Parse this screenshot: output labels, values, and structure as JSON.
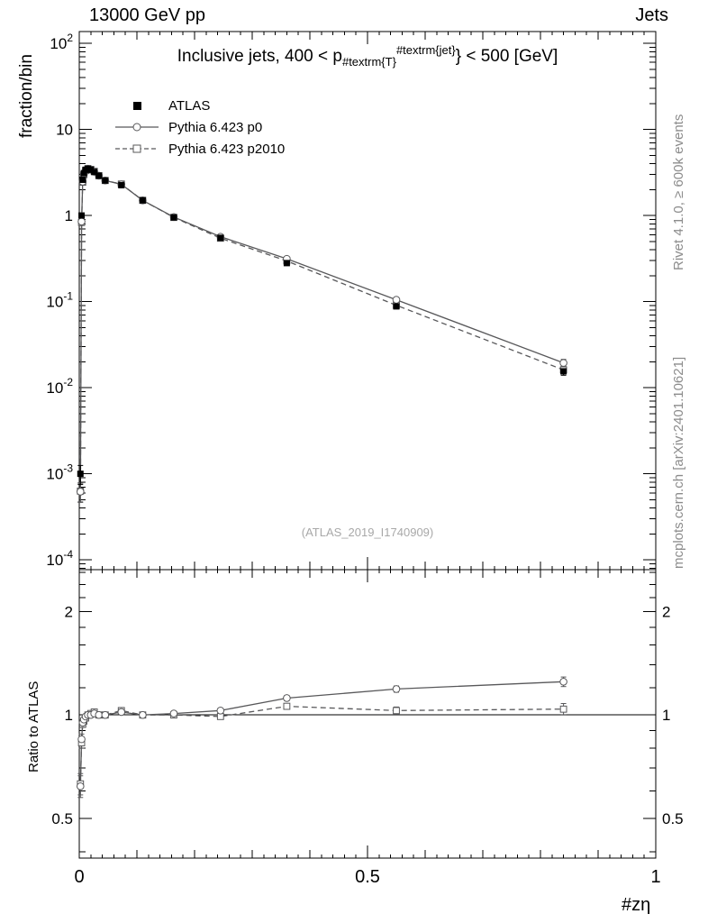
{
  "header": {
    "left": "13000 GeV pp",
    "right": "Jets"
  },
  "plot_title": {
    "prefix": "Inclusive jets, 400 < p",
    "sub": "#textrm{T}",
    "sup": "#textrm{jet}",
    "suffix": "} < 500 [GeV]"
  },
  "captions": {
    "rivet": "Rivet 4.1.0, ≥ 600k events",
    "mcplots": "mcplots.cern.ch [arXiv:2401.10621]",
    "watermark": "(ATLAS_2019_I1740909)"
  },
  "legend": {
    "items": [
      {
        "label": "ATLAS",
        "marker": "filled-square",
        "line": "none"
      },
      {
        "label": "Pythia 6.423 p0",
        "marker": "open-circle",
        "line": "solid"
      },
      {
        "label": "Pythia 6.423 p2010",
        "marker": "open-square",
        "line": "dashed"
      }
    ]
  },
  "colors": {
    "mc": "#58585a",
    "atlas": "#000000",
    "frame": "#000000",
    "caption": "#8c8c8c",
    "watermark": "#a8a8a8"
  },
  "chart_data": {
    "type": "line",
    "xlabel": "#zη",
    "xrange": [
      0,
      1
    ],
    "xticks": [
      {
        "v": 0,
        "t": "0"
      },
      {
        "v": 0.5,
        "t": "0.5"
      },
      {
        "v": 1,
        "t": "1"
      }
    ],
    "x": [
      0.002,
      0.004,
      0.006,
      0.008,
      0.011,
      0.015,
      0.02,
      0.026,
      0.034,
      0.045,
      0.073,
      0.11,
      0.164,
      0.245,
      0.36,
      0.55,
      0.84
    ],
    "main": {
      "ylabel": "fraction/bin",
      "yscale": "log",
      "yrange": [
        7.7e-05,
        137
      ],
      "yticklabels": [
        {
          "v": 100,
          "t": "10",
          "e": "2"
        },
        {
          "v": 10,
          "t": "10",
          "e": ""
        },
        {
          "v": 1,
          "t": "1",
          "e": ""
        },
        {
          "v": 0.1,
          "t": "10",
          "e": "-1"
        },
        {
          "v": 0.01,
          "t": "10",
          "e": "-2"
        },
        {
          "v": 0.001,
          "t": "10",
          "e": "-3"
        },
        {
          "v": 0.0001,
          "t": "10",
          "e": "-4"
        }
      ],
      "rel_err": [
        0.25,
        0.03,
        0.02,
        0.015,
        0.012,
        0.01,
        0.01,
        0.01,
        0.01,
        0.01,
        0.01,
        0.01,
        0.012,
        0.015,
        0.02,
        0.03,
        0.1
      ],
      "series": [
        {
          "name": "ATLAS",
          "values": [
            0.001,
            1.0,
            2.6,
            3.1,
            3.4,
            3.5,
            3.4,
            3.2,
            2.9,
            2.55,
            2.25,
            1.5,
            0.95,
            0.55,
            0.28,
            0.088,
            0.0155
          ]
        },
        {
          "name": "Pythia 6.423 p0",
          "values": [
            0.00062,
            0.85,
            2.47,
            3.01,
            3.37,
            3.5,
            3.4,
            3.23,
            2.9,
            2.55,
            2.3,
            1.5,
            0.96,
            0.567,
            0.314,
            0.105,
            0.0194
          ]
        },
        {
          "name": "Pythia 6.423 p2010",
          "values": [
            0.00063,
            0.83,
            2.44,
            2.98,
            3.33,
            3.5,
            3.43,
            3.26,
            2.9,
            2.55,
            2.32,
            1.5,
            0.95,
            0.545,
            0.297,
            0.0906,
            0.0161
          ]
        }
      ]
    },
    "ratio": {
      "ylabel": "Ratio to ATLAS",
      "yscale": "log",
      "yrange": [
        0.383,
        2.65
      ],
      "reference": 1,
      "yticklabels": [
        {
          "v": 2,
          "t": "2"
        },
        {
          "v": 1,
          "t": "1"
        },
        {
          "v": 0.5,
          "t": "0.5"
        }
      ],
      "minorticks": [
        0.4,
        0.6,
        0.7,
        0.8,
        0.9,
        1.2,
        1.4,
        1.6,
        1.8,
        2.2,
        2.4,
        2.6
      ],
      "series": [
        {
          "name": "Pythia 6.423 p0",
          "values": [
            0.62,
            0.85,
            0.95,
            0.97,
            0.99,
            1.0,
            1.0,
            1.01,
            1.0,
            1.0,
            1.02,
            1.0,
            1.01,
            1.03,
            1.12,
            1.19,
            1.25
          ],
          "errors": [
            0.045,
            0.03,
            0.02,
            0.015,
            0.012,
            0.01,
            0.01,
            0.01,
            0.01,
            0.01,
            0.01,
            0.012,
            0.012,
            0.015,
            0.02,
            0.025,
            0.04
          ]
        },
        {
          "name": "Pythia 6.423 p2010",
          "values": [
            0.63,
            0.83,
            0.94,
            0.96,
            0.98,
            1.0,
            1.01,
            1.02,
            1.0,
            1.0,
            1.03,
            1.0,
            1.0,
            0.99,
            1.06,
            1.03,
            1.04
          ],
          "errors": [
            0.045,
            0.03,
            0.02,
            0.015,
            0.012,
            0.01,
            0.01,
            0.01,
            0.01,
            0.01,
            0.01,
            0.012,
            0.012,
            0.015,
            0.02,
            0.025,
            0.04
          ]
        }
      ]
    }
  }
}
